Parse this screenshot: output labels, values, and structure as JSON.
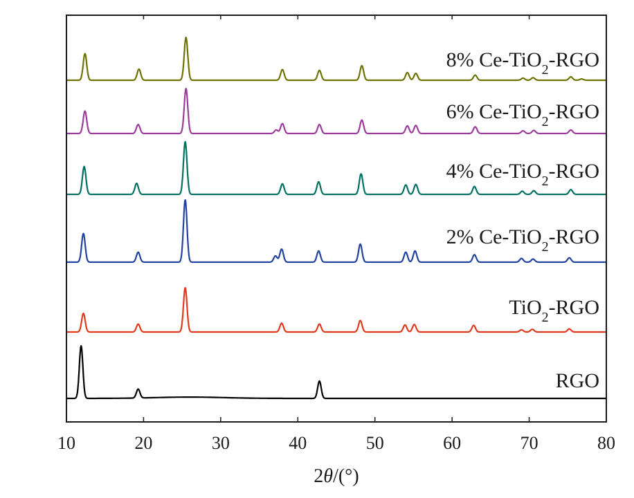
{
  "chart_data": {
    "type": "line",
    "xlabel": "2θ/(°)",
    "ylabel": "",
    "xlim": [
      10,
      80
    ],
    "xticks": [
      "10",
      "20",
      "30",
      "40",
      "50",
      "60",
      "70",
      "80"
    ],
    "grid": false,
    "legend": "none",
    "series": [
      {
        "name": "RGO",
        "color": "#000000",
        "peaks": [
          [
            11.9,
            1.0
          ],
          [
            19.3,
            0.17
          ],
          [
            42.8,
            0.33
          ]
        ]
      },
      {
        "name": "TiO2-RGO",
        "color": "#e03a1e",
        "peaks": [
          [
            12.2,
            0.42
          ],
          [
            19.3,
            0.18
          ],
          [
            25.4,
            1.0
          ],
          [
            37.9,
            0.2
          ],
          [
            42.8,
            0.18
          ],
          [
            48.1,
            0.26
          ],
          [
            53.9,
            0.16
          ],
          [
            55.1,
            0.17
          ],
          [
            62.8,
            0.15
          ],
          [
            69.0,
            0.05
          ],
          [
            70.4,
            0.06
          ],
          [
            75.2,
            0.07
          ]
        ]
      },
      {
        "name": "2% Ce-TiO2-RGO",
        "color": "#2142a0",
        "peaks": [
          [
            12.2,
            0.46
          ],
          [
            19.3,
            0.16
          ],
          [
            25.4,
            1.0
          ],
          [
            37.1,
            0.1
          ],
          [
            37.9,
            0.21
          ],
          [
            42.7,
            0.18
          ],
          [
            48.1,
            0.29
          ],
          [
            54.0,
            0.16
          ],
          [
            55.2,
            0.18
          ],
          [
            62.9,
            0.12
          ],
          [
            69.0,
            0.06
          ],
          [
            70.5,
            0.05
          ],
          [
            75.2,
            0.07
          ]
        ]
      },
      {
        "name": "4% Ce-TiO2-RGO",
        "color": "#007060",
        "peaks": [
          [
            12.3,
            0.53
          ],
          [
            19.1,
            0.21
          ],
          [
            25.4,
            1.0
          ],
          [
            38.0,
            0.2
          ],
          [
            42.7,
            0.24
          ],
          [
            48.2,
            0.39
          ],
          [
            54.0,
            0.18
          ],
          [
            55.3,
            0.19
          ],
          [
            62.9,
            0.15
          ],
          [
            69.1,
            0.06
          ],
          [
            70.6,
            0.07
          ],
          [
            75.4,
            0.09
          ]
        ]
      },
      {
        "name": "6% Ce-TiO2-RGO",
        "color": "#9b3c9b",
        "peaks": [
          [
            12.4,
            0.5
          ],
          [
            19.3,
            0.2
          ],
          [
            25.5,
            1.0
          ],
          [
            37.2,
            0.08
          ],
          [
            38.0,
            0.22
          ],
          [
            42.8,
            0.2
          ],
          [
            48.3,
            0.3
          ],
          [
            54.2,
            0.17
          ],
          [
            55.3,
            0.18
          ],
          [
            63.0,
            0.15
          ],
          [
            69.2,
            0.06
          ],
          [
            70.6,
            0.07
          ],
          [
            75.4,
            0.08
          ]
        ]
      },
      {
        "name": "8% Ce-TiO2-RGO",
        "color": "#6e7200",
        "peaks": [
          [
            12.4,
            0.62
          ],
          [
            19.4,
            0.26
          ],
          [
            25.5,
            1.0
          ],
          [
            38.0,
            0.25
          ],
          [
            42.8,
            0.23
          ],
          [
            48.3,
            0.34
          ],
          [
            54.2,
            0.18
          ],
          [
            55.3,
            0.16
          ],
          [
            63.0,
            0.12
          ],
          [
            69.2,
            0.05
          ],
          [
            70.5,
            0.06
          ],
          [
            75.4,
            0.08
          ],
          [
            76.8,
            0.03
          ]
        ]
      }
    ]
  }
}
